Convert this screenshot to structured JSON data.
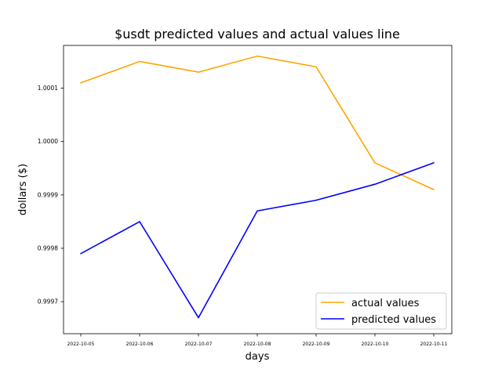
{
  "chart_data": {
    "type": "line",
    "title": "$usdt predicted values and actual values line",
    "xlabel": "days",
    "ylabel": "dollars ($)",
    "categories": [
      "2022-10-05",
      "2022-10-06",
      "2022-10-07",
      "2022-10-08",
      "2022-10-09",
      "2022-10-10",
      "2022-10-11"
    ],
    "ylim": [
      0.99964,
      1.00018
    ],
    "yticks": [
      0.9997,
      0.9998,
      0.9999,
      1.0,
      1.0001
    ],
    "ytick_labels": [
      "0.9997",
      "0.9998",
      "0.9999",
      "1.0000",
      "1.0001"
    ],
    "grid": false,
    "legend_position": "lower-right",
    "series": [
      {
        "name": "actual values",
        "color": "#ffa500",
        "values": [
          1.00011,
          1.00015,
          1.00013,
          1.00016,
          1.00014,
          0.99996,
          0.99991
        ]
      },
      {
        "name": "predicted values",
        "color": "#0000ff",
        "values": [
          0.99979,
          0.99985,
          0.99967,
          0.99987,
          0.99989,
          0.99992,
          0.99996
        ]
      }
    ]
  }
}
